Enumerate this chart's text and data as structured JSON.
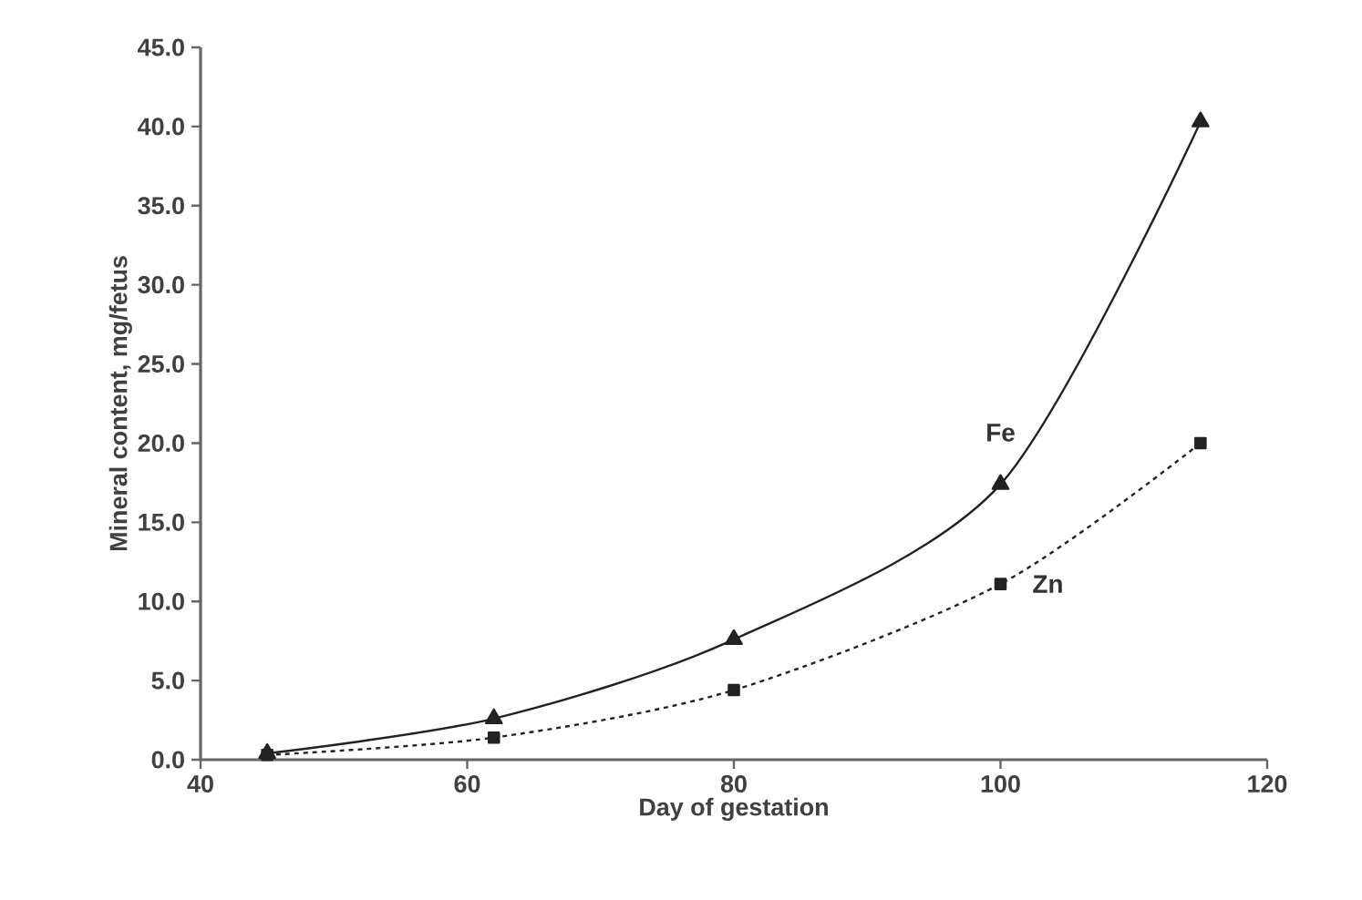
{
  "chart_data": {
    "type": "line",
    "xlabel": "Day of gestation",
    "ylabel": "Mineral content, mg/fetus",
    "x": [
      45,
      62,
      80,
      100,
      115
    ],
    "series": [
      {
        "name": "Fe",
        "color": "#222222",
        "values": [
          0.4,
          2.6,
          7.6,
          17.4,
          40.3
        ],
        "marker": "triangle",
        "line_style": "solid"
      },
      {
        "name": "Zn",
        "color": "#222222",
        "values": [
          0.3,
          1.4,
          4.4,
          11.1,
          20.0
        ],
        "marker": "square",
        "line_style": "dotted"
      }
    ],
    "xlim": [
      40,
      120
    ],
    "xticks": [
      40,
      60,
      80,
      100,
      120
    ],
    "ylim": [
      0,
      45
    ],
    "yticks": [
      {
        "value": 0,
        "label": "0.0"
      },
      {
        "value": 5,
        "label": "5.0"
      },
      {
        "value": 10,
        "label": "10.0"
      },
      {
        "value": 15,
        "label": "15.0"
      },
      {
        "value": 20,
        "label": "20.0"
      },
      {
        "value": 25,
        "label": "25.0"
      },
      {
        "value": 30,
        "label": "30.0"
      },
      {
        "value": 35,
        "label": "35.0"
      },
      {
        "value": 40,
        "label": "40.0"
      },
      {
        "value": 45,
        "label": "45.0"
      }
    ],
    "grid": false
  }
}
